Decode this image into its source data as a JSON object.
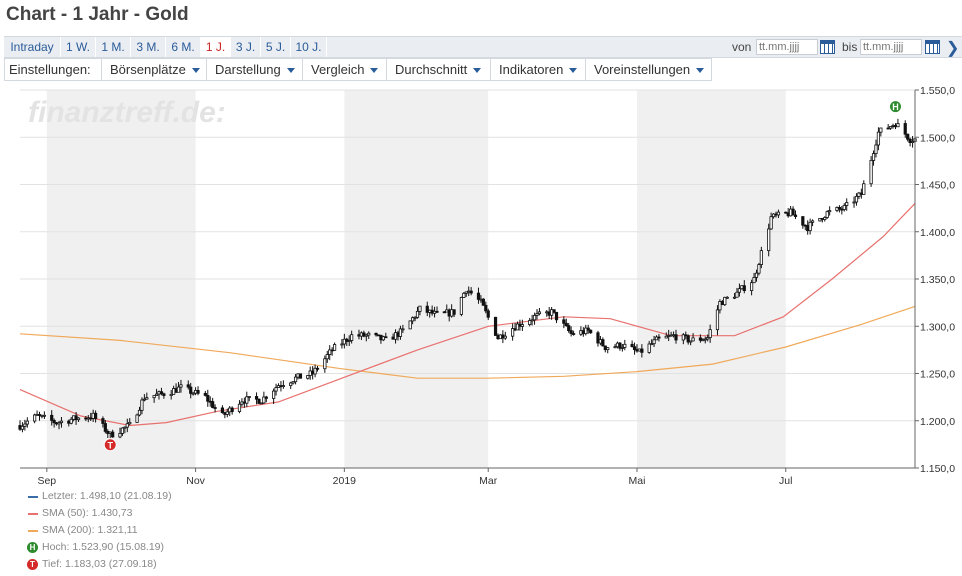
{
  "title": "Chart - 1 Jahr - Gold",
  "tabs": [
    {
      "label": "Intraday",
      "active": false
    },
    {
      "label": "1 W.",
      "active": false
    },
    {
      "label": "1 M.",
      "active": false
    },
    {
      "label": "3 M.",
      "active": false
    },
    {
      "label": "6 M.",
      "active": false
    },
    {
      "label": "1 J.",
      "active": true
    },
    {
      "label": "3 J.",
      "active": false
    },
    {
      "label": "5 J.",
      "active": false
    },
    {
      "label": "10 J.",
      "active": false
    }
  ],
  "range": {
    "from_label": "von",
    "to_label": "bis",
    "from_placeholder": "tt.mm.jjjj",
    "to_placeholder": "tt.mm.jjjj"
  },
  "settings": {
    "label": "Einstellungen:",
    "menus": [
      "Börsenplätze",
      "Darstellung",
      "Vergleich",
      "Durchschnitt",
      "Indikatoren",
      "Voreinstellungen"
    ]
  },
  "watermark": "finanztreff.de:",
  "colors": {
    "candles": "#111111",
    "sma50": "#e8716e",
    "sma200": "#f0a95a",
    "last": "#3a6ea8",
    "high": "#2e8b2e",
    "low": "#d42a2a",
    "band": "#f0f0f0",
    "tab_text": "#2a5c9a"
  },
  "legend": [
    {
      "text": "Letzter: 1.498,10 (21.08.19)",
      "kind": "line",
      "color": "#3a6ea8"
    },
    {
      "text": "SMA (50): 1.430,73",
      "kind": "line",
      "color": "#e8716e"
    },
    {
      "text": "SMA (200): 1.321,11",
      "kind": "line",
      "color": "#f0a95a"
    },
    {
      "text": "Hoch: 1.523,90 (15.08.19)",
      "kind": "badge",
      "badge": "H",
      "color": "#2e8b2e"
    },
    {
      "text": "Tief: 1.183,03 (27.09.18)",
      "kind": "badge",
      "badge": "T",
      "color": "#d42a2a"
    }
  ],
  "chart_data": {
    "type": "candlestick",
    "y_range": [
      1150,
      1550
    ],
    "y_ticks": [
      1150,
      1200,
      1250,
      1300,
      1350,
      1400,
      1450,
      1500,
      1550
    ],
    "y_tick_labels": [
      "1.150,0",
      "1.200,0",
      "1.250,0",
      "1.300,0",
      "1.350,0",
      "1.400,0",
      "1.450,0",
      "1.500,0",
      "1.550,0"
    ],
    "x_range": [
      "2018-08-21",
      "2019-08-23"
    ],
    "x_ticks": [
      "2018-09-01",
      "2018-11-01",
      "2019-01-01",
      "2019-03-01",
      "2019-05-01",
      "2019-07-01"
    ],
    "x_tick_labels": [
      "Sep",
      "Nov",
      "2019",
      "Mar",
      "Mai",
      "Jul"
    ],
    "shaded_bands": [
      [
        "2018-09-01",
        "2018-11-01"
      ],
      [
        "2019-01-01",
        "2019-03-01"
      ],
      [
        "2019-05-01",
        "2019-07-01"
      ]
    ],
    "price_path": [
      [
        "2018-08-21",
        1195
      ],
      [
        "2018-08-28",
        1205
      ],
      [
        "2018-09-05",
        1198
      ],
      [
        "2018-09-12",
        1202
      ],
      [
        "2018-09-20",
        1205
      ],
      [
        "2018-09-27",
        1185
      ],
      [
        "2018-10-05",
        1195
      ],
      [
        "2018-10-11",
        1225
      ],
      [
        "2018-10-18",
        1228
      ],
      [
        "2018-10-26",
        1235
      ],
      [
        "2018-11-05",
        1225
      ],
      [
        "2018-11-12",
        1205
      ],
      [
        "2018-11-20",
        1222
      ],
      [
        "2018-11-28",
        1222
      ],
      [
        "2018-12-05",
        1238
      ],
      [
        "2018-12-12",
        1245
      ],
      [
        "2018-12-19",
        1250
      ],
      [
        "2018-12-27",
        1275
      ],
      [
        "2019-01-04",
        1290
      ],
      [
        "2019-01-11",
        1290
      ],
      [
        "2019-01-18",
        1285
      ],
      [
        "2019-01-25",
        1295
      ],
      [
        "2019-02-01",
        1318
      ],
      [
        "2019-02-08",
        1312
      ],
      [
        "2019-02-15",
        1315
      ],
      [
        "2019-02-20",
        1340
      ],
      [
        "2019-02-26",
        1325
      ],
      [
        "2019-03-05",
        1288
      ],
      [
        "2019-03-12",
        1300
      ],
      [
        "2019-03-20",
        1310
      ],
      [
        "2019-03-27",
        1315
      ],
      [
        "2019-04-04",
        1292
      ],
      [
        "2019-04-11",
        1295
      ],
      [
        "2019-04-18",
        1278
      ],
      [
        "2019-04-25",
        1280
      ],
      [
        "2019-05-02",
        1272
      ],
      [
        "2019-05-09",
        1285
      ],
      [
        "2019-05-16",
        1290
      ],
      [
        "2019-05-23",
        1285
      ],
      [
        "2019-05-30",
        1288
      ],
      [
        "2019-06-04",
        1325
      ],
      [
        "2019-06-11",
        1335
      ],
      [
        "2019-06-18",
        1350
      ],
      [
        "2019-06-25",
        1415
      ],
      [
        "2019-07-03",
        1420
      ],
      [
        "2019-07-10",
        1405
      ],
      [
        "2019-07-18",
        1420
      ],
      [
        "2019-07-25",
        1425
      ],
      [
        "2019-08-01",
        1440
      ],
      [
        "2019-08-08",
        1505
      ],
      [
        "2019-08-15",
        1515
      ],
      [
        "2019-08-21",
        1498
      ]
    ],
    "sma50_path": [
      [
        "2018-08-21",
        1233
      ],
      [
        "2018-09-15",
        1205
      ],
      [
        "2018-10-05",
        1195
      ],
      [
        "2018-10-20",
        1198
      ],
      [
        "2018-11-10",
        1210
      ],
      [
        "2018-12-05",
        1220
      ],
      [
        "2018-12-31",
        1245
      ],
      [
        "2019-01-31",
        1275
      ],
      [
        "2019-03-01",
        1300
      ],
      [
        "2019-04-01",
        1310
      ],
      [
        "2019-04-20",
        1308
      ],
      [
        "2019-05-15",
        1290
      ],
      [
        "2019-06-10",
        1290
      ],
      [
        "2019-06-30",
        1310
      ],
      [
        "2019-07-20",
        1350
      ],
      [
        "2019-08-10",
        1395
      ],
      [
        "2019-08-23",
        1430
      ]
    ],
    "sma200_path": [
      [
        "2018-08-21",
        1292
      ],
      [
        "2018-10-01",
        1285
      ],
      [
        "2018-11-15",
        1272
      ],
      [
        "2018-12-31",
        1255
      ],
      [
        "2019-01-31",
        1245
      ],
      [
        "2019-03-01",
        1245
      ],
      [
        "2019-04-01",
        1247
      ],
      [
        "2019-05-01",
        1252
      ],
      [
        "2019-06-01",
        1260
      ],
      [
        "2019-07-01",
        1278
      ],
      [
        "2019-08-01",
        1302
      ],
      [
        "2019-08-23",
        1321
      ]
    ],
    "markers": [
      {
        "label": "H",
        "date": "2019-08-15",
        "value": 1523.9
      },
      {
        "label": "T",
        "date": "2018-09-27",
        "value": 1183.03
      }
    ]
  }
}
